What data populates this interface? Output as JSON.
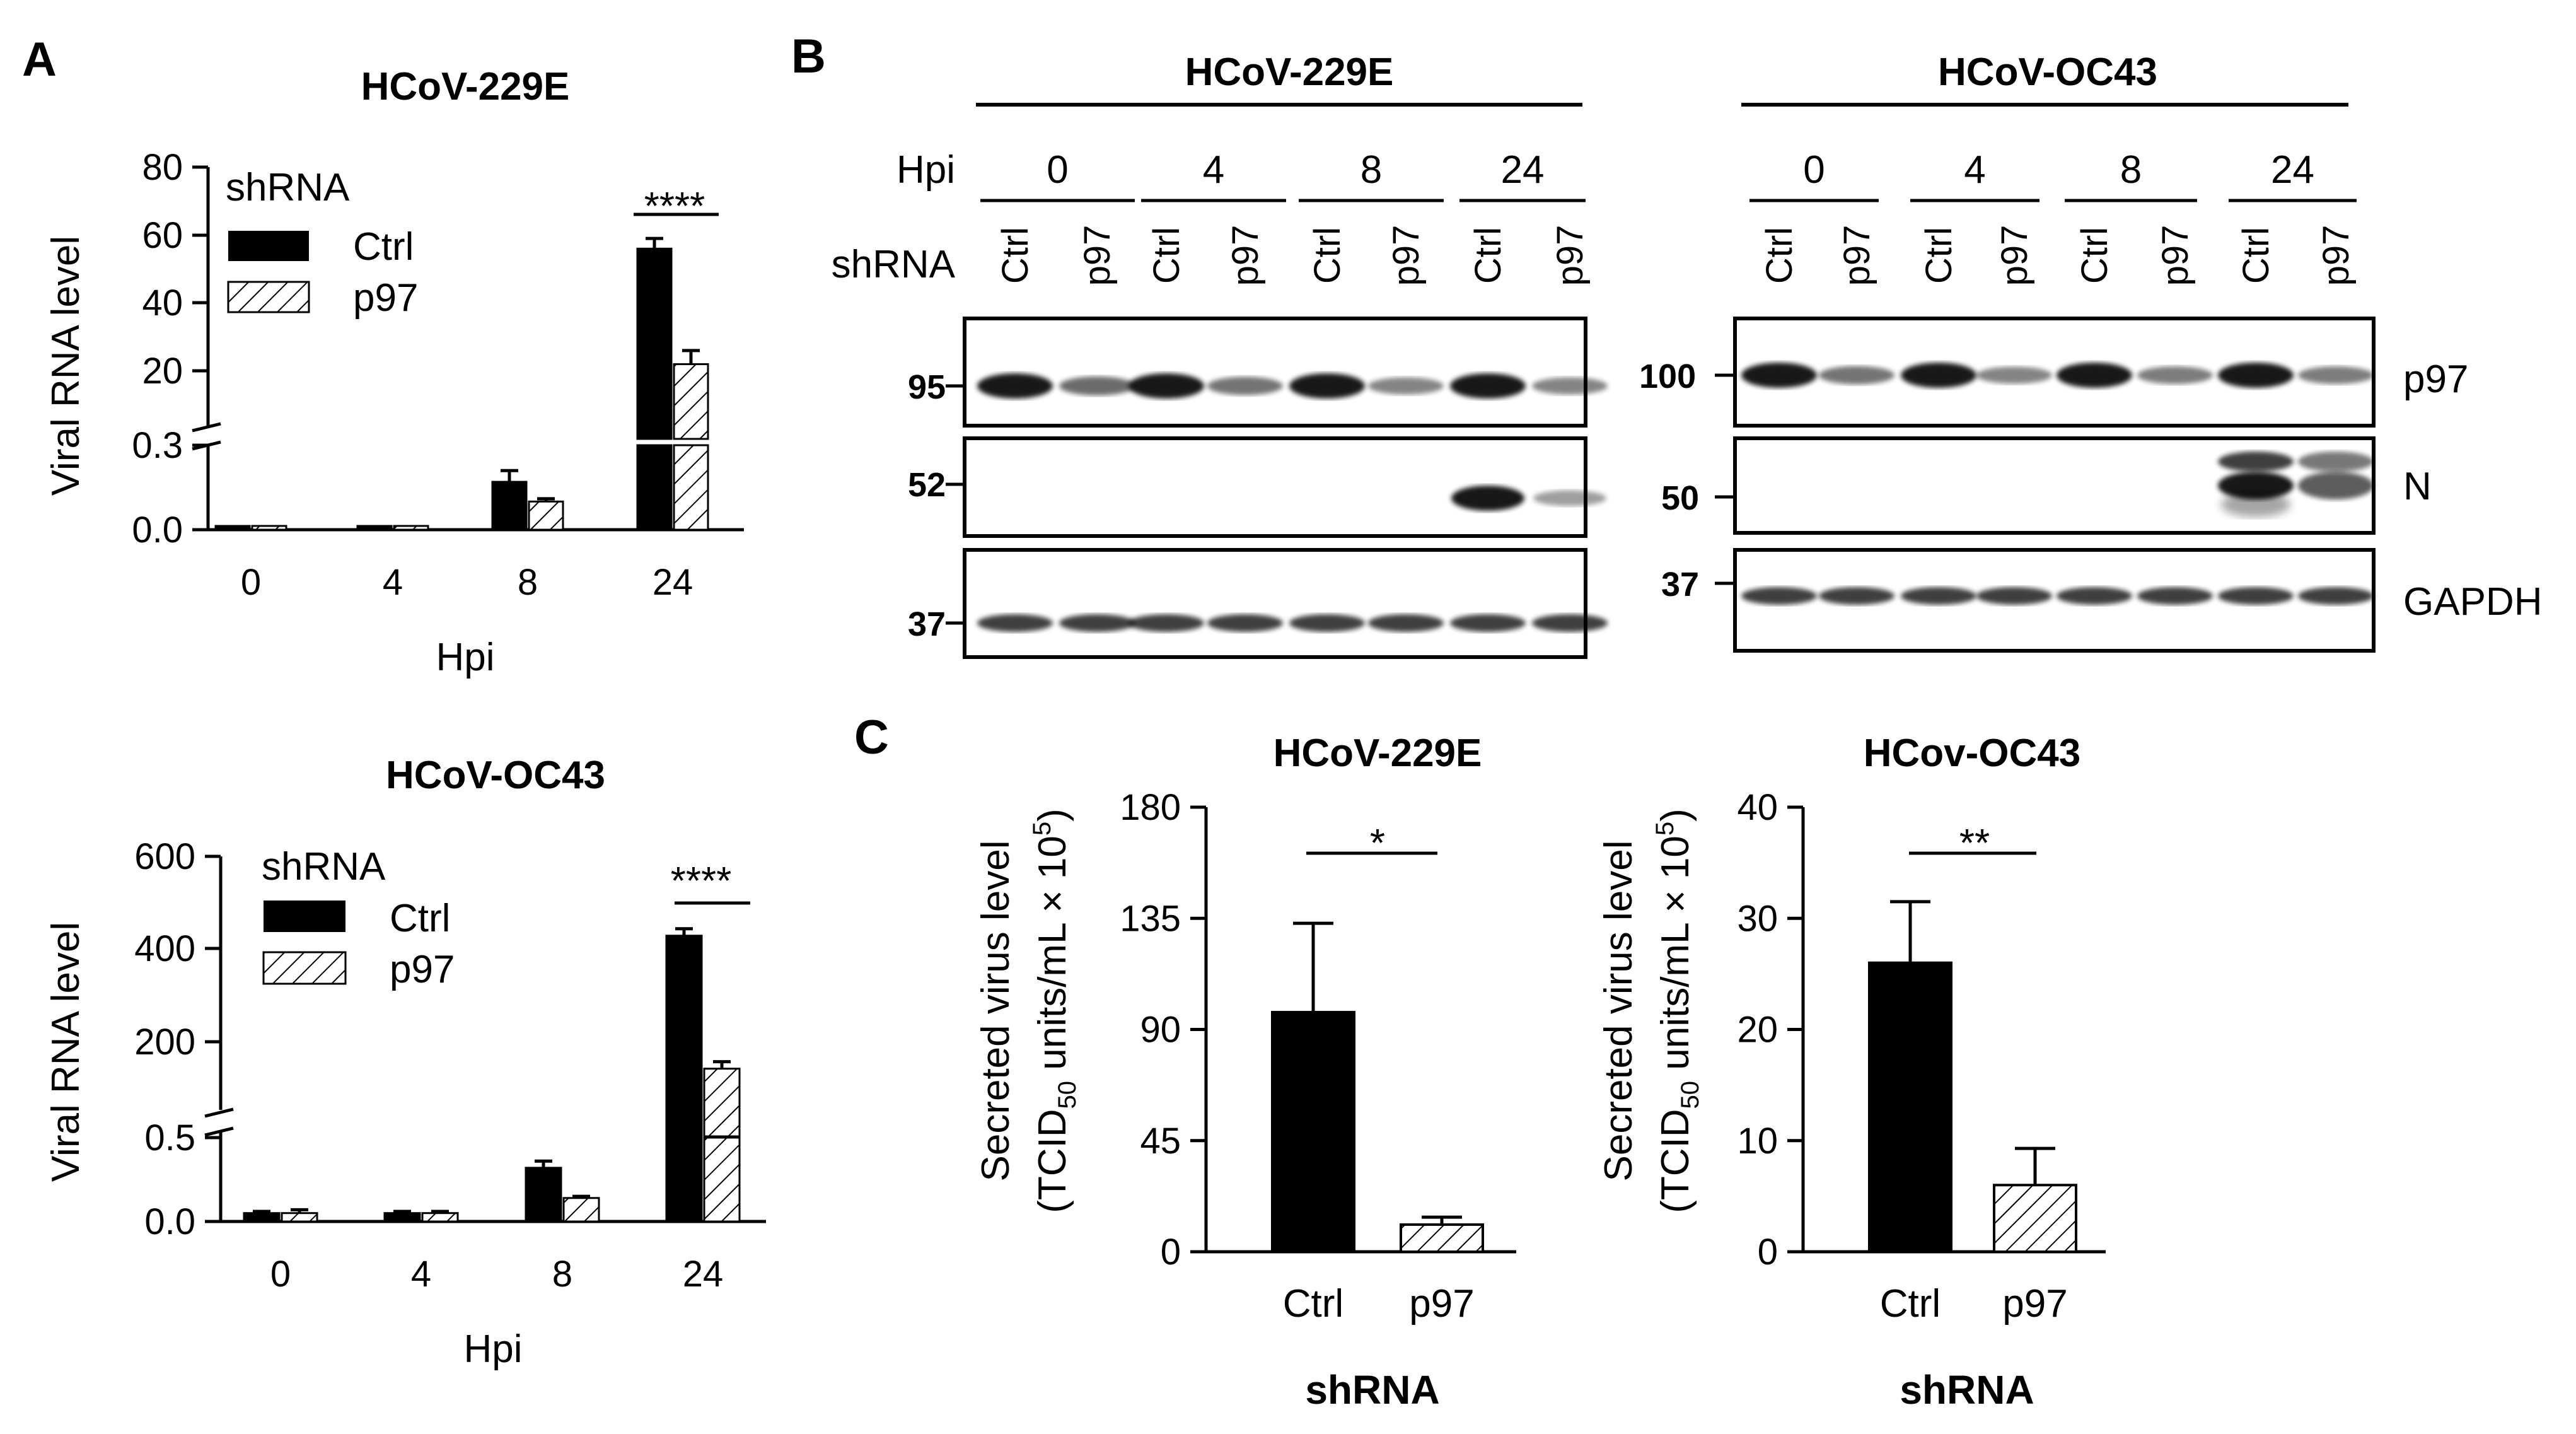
{
  "panel_labels": {
    "a": "A",
    "b": "B",
    "c": "C"
  },
  "common": {
    "shrna": "shRNA",
    "ctrl": "Ctrl",
    "p97": "p97",
    "hpi": "Hpi",
    "viral_rna": "Viral RNA level",
    "secreted": "Secreted virus level",
    "tcid_pre": "(TCID",
    "tcid_sub": "50",
    "tcid_mid": " units/mL × 10",
    "tcid_sup": "5",
    "tcid_post": ")"
  },
  "colors": {
    "ctrl_fill": "#000000",
    "p97_fill": "hatched",
    "axis": "#000000"
  },
  "chart_data": [
    {
      "id": "A-top",
      "type": "bar",
      "title": "HCoV-229E",
      "xlabel": "Hpi",
      "ylabel": "Viral RNA level",
      "legend_title": "shRNA",
      "legend_placement": "top-left",
      "categories": [
        "0",
        "4",
        "8",
        "24"
      ],
      "axis_break": {
        "lower": [
          0,
          0.3
        ],
        "upper": [
          0,
          80
        ]
      },
      "lower_ticks": [
        "0.0",
        "0.3"
      ],
      "upper_ticks": [
        "20",
        "40",
        "60",
        "80"
      ],
      "series": [
        {
          "name": "Ctrl",
          "values": [
            0.001,
            0.001,
            0.17,
            56
          ],
          "errors": [
            0,
            0,
            0.04,
            3
          ]
        },
        {
          "name": "p97",
          "values": [
            0.001,
            0.001,
            0.1,
            22
          ],
          "errors": [
            0,
            0,
            0.01,
            4
          ]
        }
      ],
      "significance": [
        {
          "category": "24",
          "label": "****"
        }
      ]
    },
    {
      "id": "A-bottom",
      "type": "bar",
      "title": "HCoV-OC43",
      "xlabel": "Hpi",
      "ylabel": "Viral RNA level",
      "legend_title": "shRNA",
      "legend_placement": "top-left",
      "categories": [
        "0",
        "4",
        "8",
        "24"
      ],
      "axis_break": {
        "lower": [
          0,
          0.5
        ],
        "upper": [
          0,
          600
        ]
      },
      "lower_ticks": [
        "0.0",
        "0.5"
      ],
      "upper_ticks": [
        "200",
        "400",
        "600"
      ],
      "series": [
        {
          "name": "Ctrl",
          "values": [
            0.05,
            0.05,
            0.32,
            430
          ],
          "errors": [
            0.01,
            0.01,
            0.04,
            15
          ]
        },
        {
          "name": "p97",
          "values": [
            0.05,
            0.05,
            0.14,
            145
          ],
          "errors": [
            0.02,
            0.01,
            0.01,
            15
          ]
        }
      ],
      "significance": [
        {
          "category": "24",
          "label": "****"
        }
      ]
    },
    {
      "id": "C-left",
      "type": "bar",
      "title": "HCoV-229E",
      "xlabel": "shRNA",
      "ylabel": "Secreted virus level (TCID50 units/mL × 10^5)",
      "categories": [
        "Ctrl",
        "p97"
      ],
      "ylim": [
        0,
        180
      ],
      "yticks": [
        "0",
        "45",
        "90",
        "135",
        "180"
      ],
      "values": [
        97,
        11
      ],
      "errors": [
        36,
        3
      ],
      "significance": [
        {
          "label": "*"
        }
      ]
    },
    {
      "id": "C-right",
      "type": "bar",
      "title": "HCov-OC43",
      "xlabel": "shRNA",
      "ylabel": "Secreted virus level (TCID50 units/mL × 10^5)",
      "categories": [
        "Ctrl",
        "p97"
      ],
      "ylim": [
        0,
        40
      ],
      "yticks": [
        "0",
        "10",
        "20",
        "30",
        "40"
      ],
      "values": [
        26,
        6
      ],
      "errors": [
        5.5,
        3.3
      ],
      "significance": [
        {
          "label": "**"
        }
      ]
    }
  ],
  "blot": {
    "row_hpi": "Hpi",
    "row_shrna": "shRNA",
    "groups": [
      {
        "title": "HCoV-229E",
        "timepoints": [
          "0",
          "4",
          "8",
          "24"
        ],
        "lanes": [
          "Ctrl",
          "p97",
          "Ctrl",
          "p97",
          "Ctrl",
          "p97",
          "Ctrl",
          "p97"
        ],
        "markers": [
          "95",
          "52",
          "37"
        ],
        "p97_band_intensity": [
          1,
          0.5,
          1,
          0.45,
          1,
          0.35,
          1,
          0.35
        ],
        "n_band_intensity": [
          0,
          0,
          0,
          0,
          0,
          0,
          1,
          0.25
        ],
        "gapdh_band_intensity": [
          1,
          1,
          1,
          1,
          1,
          1,
          1,
          1
        ]
      },
      {
        "title": "HCoV-OC43",
        "timepoints": [
          "0",
          "4",
          "8",
          "24"
        ],
        "lanes": [
          "Ctrl",
          "p97",
          "Ctrl",
          "p97",
          "Ctrl",
          "p97",
          "Ctrl",
          "p97"
        ],
        "markers": [
          "100",
          "50",
          "37"
        ],
        "p97_band_intensity": [
          1,
          0.45,
          1,
          0.35,
          1,
          0.4,
          1,
          0.4
        ],
        "n_band_intensity": [
          0,
          0,
          0,
          0,
          0,
          0,
          1,
          0.55
        ],
        "gapdh_band_intensity": [
          1,
          1,
          1,
          1,
          1,
          1,
          1,
          1
        ]
      }
    ],
    "proteins": [
      "p97",
      "N",
      "GAPDH"
    ]
  }
}
